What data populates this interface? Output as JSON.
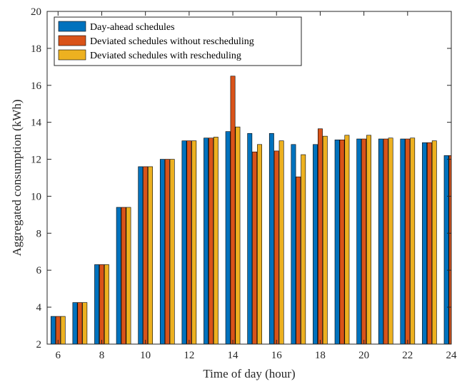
{
  "chart_data": {
    "type": "bar",
    "xlabel": "Time of day (hour)",
    "ylabel": "Aggregated consumption (kWh)",
    "xlim": [
      5.5,
      24
    ],
    "ylim": [
      2,
      20
    ],
    "xticks": [
      6,
      8,
      10,
      12,
      14,
      16,
      18,
      20,
      22,
      24
    ],
    "yticks": [
      2,
      4,
      6,
      8,
      10,
      12,
      14,
      16,
      18,
      20
    ],
    "legend_position": "top-left",
    "grid": false,
    "x": [
      6,
      7,
      8,
      9,
      10,
      11,
      12,
      13,
      14,
      15,
      16,
      17,
      18,
      19,
      20,
      21,
      22,
      23,
      24
    ],
    "series": [
      {
        "name": "Day-ahead schedules",
        "color": "#0072BD",
        "values": [
          3.5,
          4.25,
          6.3,
          9.4,
          11.6,
          12.0,
          13.0,
          13.15,
          13.5,
          13.4,
          13.4,
          12.8,
          12.8,
          13.05,
          13.1,
          13.1,
          13.1,
          12.9,
          12.2
        ]
      },
      {
        "name": "Deviated schedules without rescheduling",
        "color": "#D95319",
        "values": [
          3.5,
          4.25,
          6.3,
          9.4,
          11.6,
          12.0,
          13.0,
          13.15,
          16.5,
          12.4,
          12.45,
          11.05,
          13.65,
          13.05,
          13.1,
          13.1,
          13.1,
          12.9,
          12.2
        ]
      },
      {
        "name": "Deviated schedules with rescheduling",
        "color": "#EDB120",
        "values": [
          3.5,
          4.25,
          6.3,
          9.4,
          11.6,
          12.0,
          13.0,
          13.2,
          13.75,
          12.8,
          13.0,
          12.25,
          13.25,
          13.3,
          13.3,
          13.15,
          13.15,
          13.0,
          12.45
        ]
      }
    ]
  }
}
